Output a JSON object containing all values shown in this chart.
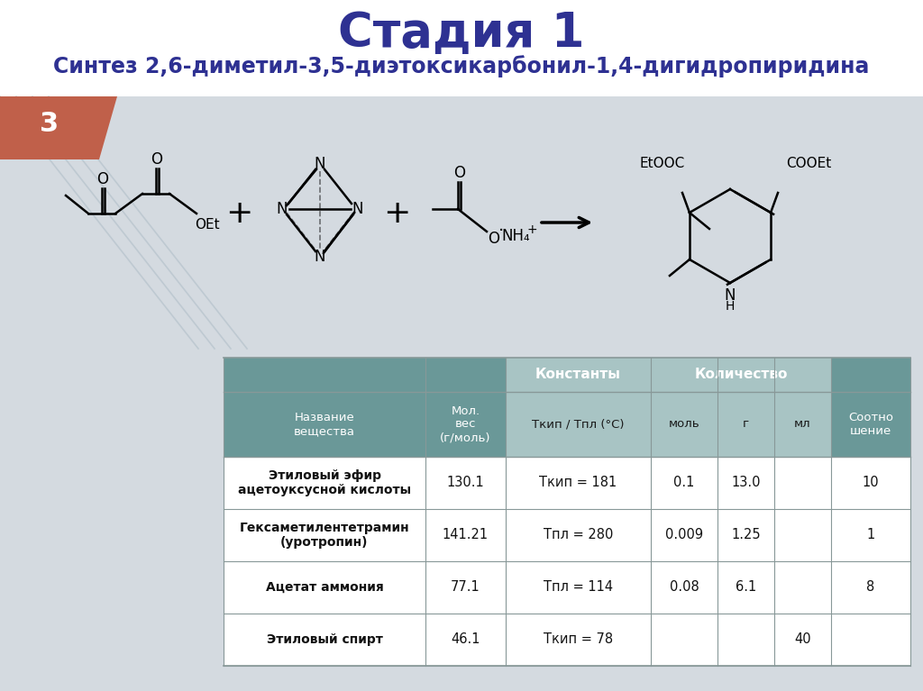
{
  "title": "Стадия 1",
  "subtitle": "Синтез 2,6-диметил-3,5-диэтоксикарбонил-1,4-дигидропиридина",
  "slide_bg": "#d4dae0",
  "top_bg": "#ffffff",
  "chem_bg": "#dce2e8",
  "title_color": "#2e3192",
  "subtitle_color": "#2e3192",
  "page_number": "3",
  "page_number_bg": "#c0604a",
  "table_header_bg": "#6a9898",
  "table_subheader_bg": "#a8c4c4",
  "table_row_bg_white": "#ffffff",
  "table_row_bg_gray": "#f2f4f4",
  "table_border": "#889898",
  "table_text_color": "#111111",
  "table_header_text": "#ffffff",
  "rows": [
    [
      "Этиловый эфир\nацетоуксусной кислоты",
      "130.1",
      "Ткип = 181",
      "0.1",
      "13.0",
      "",
      "10"
    ],
    [
      "Гексаметилентетрамин\n(уротропин)",
      "141.21",
      "Тпл = 280",
      "0.009",
      "1.25",
      "",
      "1"
    ],
    [
      "Ацетат аммония",
      "77.1",
      "Тпл = 114",
      "0.08",
      "6.1",
      "",
      "8"
    ],
    [
      "Этиловый спирт",
      "46.1",
      "Ткип = 78",
      "",
      "",
      "40",
      ""
    ]
  ]
}
